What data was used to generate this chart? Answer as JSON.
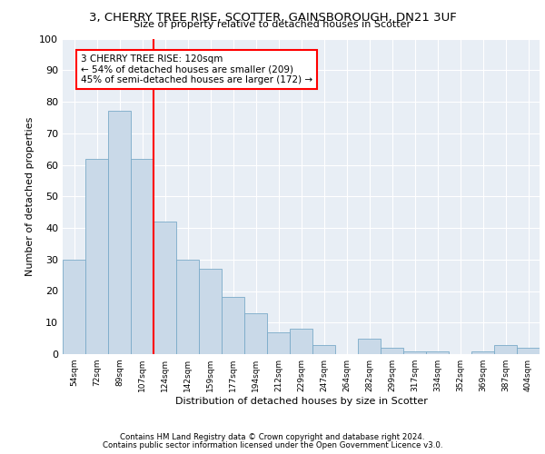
{
  "title1": "3, CHERRY TREE RISE, SCOTTER, GAINSBOROUGH, DN21 3UF",
  "title2": "Size of property relative to detached houses in Scotter",
  "xlabel": "Distribution of detached houses by size in Scotter",
  "ylabel": "Number of detached properties",
  "categories": [
    "54sqm",
    "72sqm",
    "89sqm",
    "107sqm",
    "124sqm",
    "142sqm",
    "159sqm",
    "177sqm",
    "194sqm",
    "212sqm",
    "229sqm",
    "247sqm",
    "264sqm",
    "282sqm",
    "299sqm",
    "317sqm",
    "334sqm",
    "352sqm",
    "369sqm",
    "387sqm",
    "404sqm"
  ],
  "values": [
    30,
    62,
    77,
    62,
    42,
    30,
    27,
    18,
    13,
    7,
    8,
    3,
    0,
    5,
    2,
    1,
    1,
    0,
    1,
    3,
    2
  ],
  "bar_color": "#c9d9e8",
  "bar_edge_color": "#7aaac8",
  "vline_color": "red",
  "annotation_text": "3 CHERRY TREE RISE: 120sqm\n← 54% of detached houses are smaller (209)\n45% of semi-detached houses are larger (172) →",
  "annotation_box_color": "white",
  "annotation_box_edge_color": "red",
  "ylim": [
    0,
    100
  ],
  "yticks": [
    0,
    10,
    20,
    30,
    40,
    50,
    60,
    70,
    80,
    90,
    100
  ],
  "background_color": "#e8eef5",
  "footer1": "Contains HM Land Registry data © Crown copyright and database right 2024.",
  "footer2": "Contains public sector information licensed under the Open Government Licence v3.0."
}
